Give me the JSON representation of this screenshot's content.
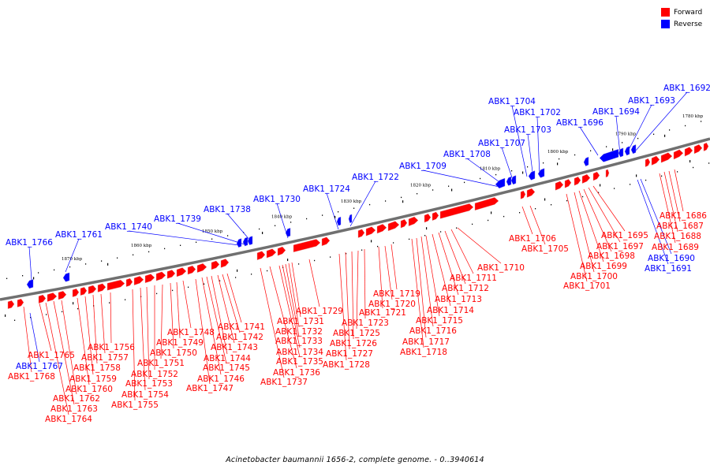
{
  "legend": {
    "forward_label": "Forward",
    "reverse_label": "Reverse",
    "forward_color": "#ff0000",
    "reverse_color": "#0000ff"
  },
  "caption": "Acinetobacter baumannii 1656-2, complete genome. - 0..3940614",
  "scale_labels": [
    "1780 kbp",
    "1790 kbp",
    "1800 kbp",
    "1810 kbp",
    "1820 kbp",
    "1830 kbp",
    "1840 kbp",
    "1850 kbp",
    "1860 kbp",
    "1870 kbp"
  ],
  "reverse_genes_top": [
    "ABK1_1692",
    "ABK1_1693",
    "ABK1_1694",
    "ABK1_1696",
    "ABK1_1702",
    "ABK1_1703",
    "ABK1_1704",
    "ABK1_1707",
    "ABK1_1708",
    "ABK1_1709",
    "ABK1_1722",
    "ABK1_1724",
    "ABK1_1730",
    "ABK1_1738",
    "ABK1_1739",
    "ABK1_1740",
    "ABK1_1761",
    "ABK1_1766"
  ],
  "reverse_genes_bottom": [
    "ABK1_1690",
    "ABK1_1691",
    "ABK1_1767"
  ],
  "forward_genes": [
    "ABK1_1686",
    "ABK1_1687",
    "ABK1_1688",
    "ABK1_1689",
    "ABK1_1695",
    "ABK1_1697",
    "ABK1_1698",
    "ABK1_1699",
    "ABK1_1700",
    "ABK1_1701",
    "ABK1_1705",
    "ABK1_1706",
    "ABK1_1710",
    "ABK1_1711",
    "ABK1_1712",
    "ABK1_1713",
    "ABK1_1714",
    "ABK1_1715",
    "ABK1_1716",
    "ABK1_1717",
    "ABK1_1718",
    "ABK1_1719",
    "ABK1_1720",
    "ABK1_1721",
    "ABK1_1723",
    "ABK1_1725",
    "ABK1_1726",
    "ABK1_1727",
    "ABK1_1728",
    "ABK1_1729",
    "ABK1_1731",
    "ABK1_1732",
    "ABK1_1733",
    "ABK1_1734",
    "ABK1_1735",
    "ABK1_1736",
    "ABK1_1737",
    "ABK1_1741",
    "ABK1_1742",
    "ABK1_1743",
    "ABK1_1744",
    "ABK1_1745",
    "ABK1_1746",
    "ABK1_1747",
    "ABK1_1748",
    "ABK1_1749",
    "ABK1_1750",
    "ABK1_1751",
    "ABK1_1752",
    "ABK1_1753",
    "ABK1_1754",
    "ABK1_1755",
    "ABK1_1756",
    "ABK1_1757",
    "ABK1_1758",
    "ABK1_1759",
    "ABK1_1760",
    "ABK1_1762",
    "ABK1_1763",
    "ABK1_1764",
    "ABK1_1765",
    "ABK1_1768"
  ]
}
